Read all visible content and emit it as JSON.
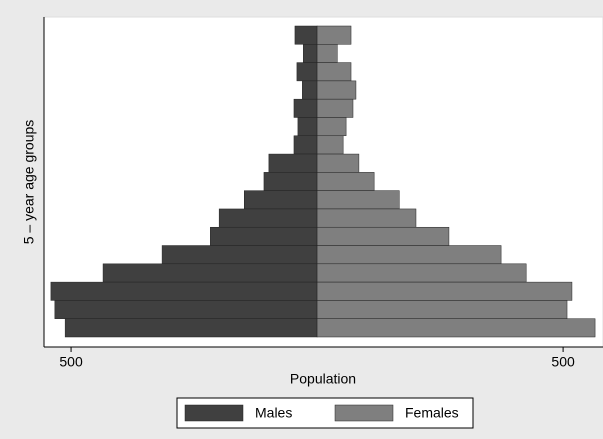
{
  "chart_data": {
    "type": "pyramid",
    "xlabel": "Population",
    "ylabel": "5 – year age groups",
    "categories": [
      null,
      null,
      null,
      null,
      null,
      null,
      null,
      null,
      null,
      null,
      null,
      null,
      null,
      null,
      null,
      null,
      null
    ],
    "series": [
      {
        "name": "Males",
        "color": "#404040",
        "values": [
          -45,
          -28,
          -41,
          -30,
          -47,
          -39,
          -47,
          -98,
          -108,
          -148,
          -199,
          -217,
          -315,
          -435,
          -541,
          -533,
          -512
        ]
      },
      {
        "name": "Females",
        "color": "#7f7f7f",
        "values": [
          69,
          41,
          69,
          79,
          73,
          59,
          53,
          85,
          116,
          167,
          201,
          268,
          374,
          425,
          518,
          508,
          565
        ]
      }
    ],
    "xlim": [
      -555,
      575
    ],
    "xticks": [
      {
        "value": -500,
        "label": "500"
      },
      500
    ],
    "legend": "bottom"
  }
}
